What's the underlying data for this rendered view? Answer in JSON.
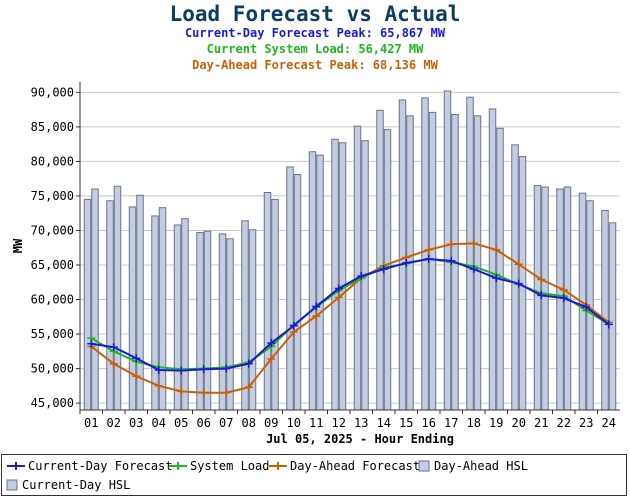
{
  "colors": {
    "title": "#0b3d63",
    "current_day": "#1a1ad6",
    "system_load": "#22b422",
    "day_ahead": "#c8600a",
    "bar_fill": "#c3cce0",
    "bar_stroke": "#6b7588",
    "grid": "#c8c8c8"
  },
  "header": {
    "title": "Load Forecast vs Actual",
    "line1": "Current-Day Forecast Peak:  65,867 MW",
    "line2": "Current System Load:  56,427 MW",
    "line3": "Day-Ahead Forecast Peak:  68,136 MW"
  },
  "legend": {
    "current_day": "Current-Day Forecast",
    "system_load": "System Load",
    "day_ahead": "Day-Ahead Forecast",
    "day_ahead_hsl": "Day-Ahead HSL",
    "current_day_hsl": "Current-Day HSL"
  },
  "chart_data": {
    "type": "bar+line",
    "title": "Load Forecast vs Actual",
    "xlabel": "Jul 05, 2025 - Hour Ending",
    "ylabel": "MW",
    "ylim": [
      44000,
      91500
    ],
    "yticks": [
      45000,
      50000,
      55000,
      60000,
      65000,
      70000,
      75000,
      80000,
      85000,
      90000
    ],
    "ytick_labels": [
      "45,000",
      "50,000",
      "55,000",
      "60,000",
      "65,000",
      "70,000",
      "75,000",
      "80,000",
      "85,000",
      "90,000"
    ],
    "categories": [
      "01",
      "02",
      "03",
      "04",
      "05",
      "06",
      "07",
      "08",
      "09",
      "10",
      "11",
      "12",
      "13",
      "14",
      "15",
      "16",
      "17",
      "18",
      "19",
      "20",
      "21",
      "22",
      "23",
      "24"
    ],
    "grid": true,
    "legend_position": "bottom",
    "bars": [
      {
        "name": "Day-Ahead HSL",
        "values": [
          74500,
          74300,
          73400,
          72100,
          70800,
          69700,
          69500,
          71400,
          75500,
          79200,
          81400,
          83200,
          85100,
          87400,
          88900,
          89200,
          90200,
          89300,
          87600,
          82400,
          76500,
          76000,
          75400,
          72900
        ]
      },
      {
        "name": "Current-Day HSL",
        "values": [
          76000,
          76400,
          75100,
          73300,
          71700,
          69900,
          68800,
          70100,
          74500,
          78100,
          80900,
          82700,
          83000,
          84600,
          86600,
          87100,
          86800,
          86600,
          84800,
          80700,
          76300,
          76300,
          74300,
          71100
        ]
      }
    ],
    "series": [
      {
        "name": "Current-Day Forecast",
        "values": [
          53600,
          53100,
          51500,
          49800,
          49700,
          49900,
          50000,
          50700,
          53700,
          56200,
          59000,
          61600,
          63400,
          64400,
          65300,
          65867,
          65600,
          64400,
          63100,
          62300,
          60600,
          60200,
          58900,
          56400
        ]
      },
      {
        "name": "System Load",
        "values": [
          54400,
          52500,
          51000,
          50200,
          49900,
          50000,
          50200,
          50900,
          53200,
          56300,
          58900,
          61300,
          63100,
          64600,
          65200,
          65900,
          65400,
          64800,
          63600,
          62200,
          60900,
          60500,
          58400,
          56427
        ]
      },
      {
        "name": "Day-Ahead Forecast",
        "values": [
          53200,
          50700,
          48900,
          47500,
          46700,
          46500,
          46500,
          47300,
          51400,
          55300,
          57600,
          60300,
          63100,
          64900,
          66100,
          67200,
          68000,
          68136,
          67200,
          65100,
          62900,
          61400,
          59200,
          56700
        ]
      }
    ]
  }
}
